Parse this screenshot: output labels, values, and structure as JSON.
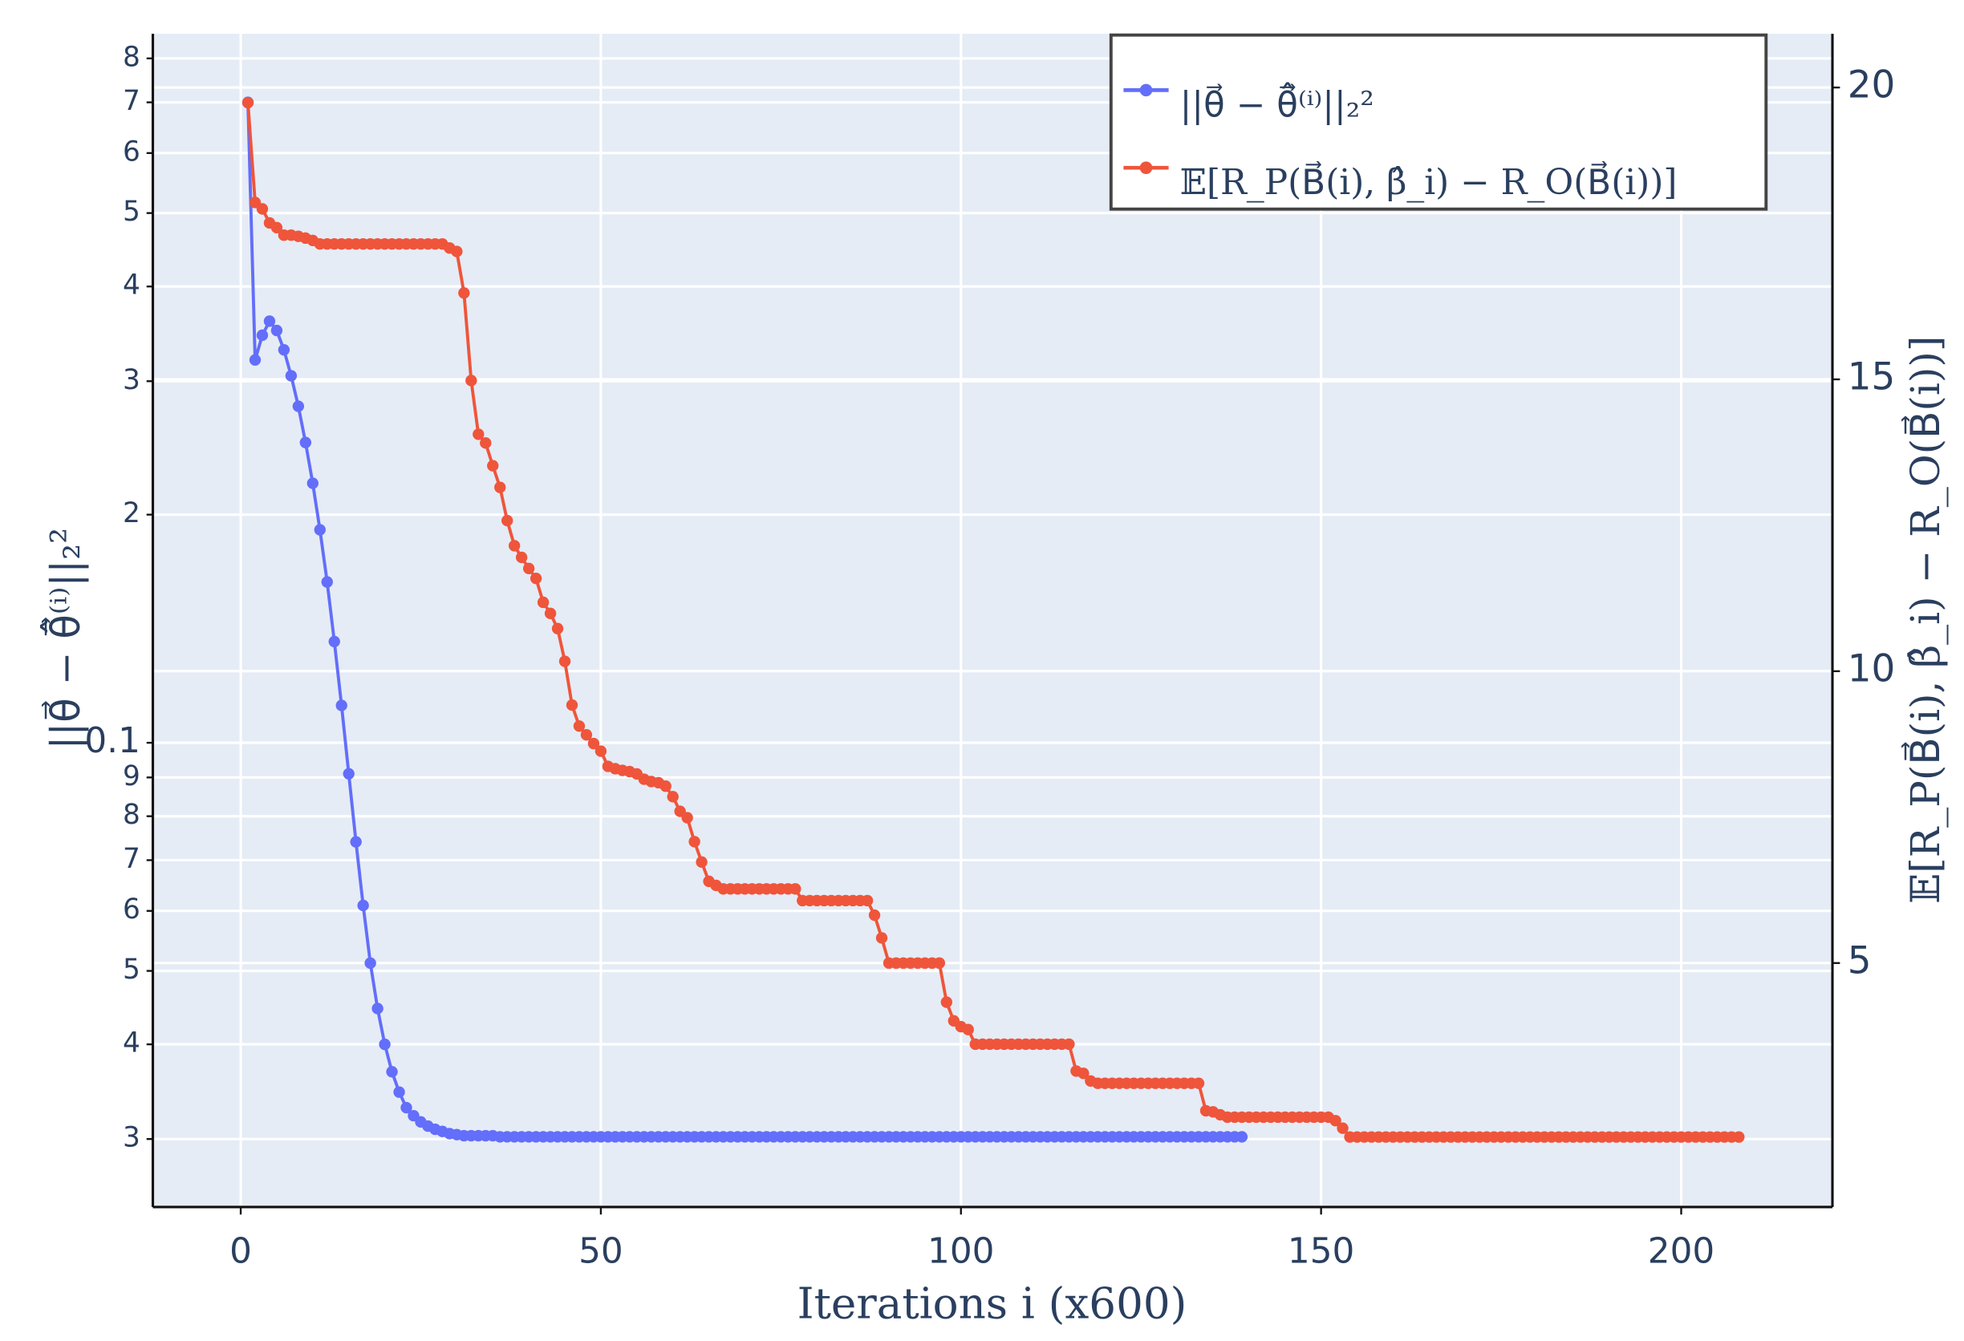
{
  "chart_data": {
    "type": "line",
    "x_label": "Iterations i (x600)",
    "y_label": "||θ⃗ − θ̂⃗⁽ⁱ⁾||₂²",
    "y2_label": "𝔼[R_P(B⃗(i), β̂_i) − R_O(B⃗(i))]",
    "xlim": [
      -12.2,
      221.0
    ],
    "xticks": [
      0,
      50,
      100,
      150,
      200
    ],
    "ylim": [
      0.0244,
      0.862
    ],
    "log_y": true,
    "yticks": [
      {
        "value": 0.03,
        "label": "3"
      },
      {
        "value": 0.04,
        "label": "4"
      },
      {
        "value": 0.05,
        "label": "5"
      },
      {
        "value": 0.06,
        "label": "6"
      },
      {
        "value": 0.07,
        "label": "7"
      },
      {
        "value": 0.08,
        "label": "8"
      },
      {
        "value": 0.09,
        "label": "9"
      },
      0.1,
      {
        "value": 0.2,
        "label": "2"
      },
      {
        "value": 0.3,
        "label": "3"
      },
      {
        "value": 0.4,
        "label": "4"
      },
      {
        "value": 0.5,
        "label": "5"
      },
      {
        "value": 0.6,
        "label": "6"
      },
      {
        "value": 0.7,
        "label": "7"
      },
      {
        "value": 0.8,
        "label": "8"
      }
    ],
    "y2lim": [
      0.82,
      20.92
    ],
    "y2ticks": [
      5,
      10,
      15,
      20
    ],
    "grid": true,
    "legend": "top-right",
    "series": [
      {
        "name": "||θ⃗ − θ̂⃗⁽ⁱ⁾||₂²",
        "color": "#636efa",
        "axis": "y",
        "x": [
          1,
          2,
          3,
          4,
          5,
          6,
          7,
          8,
          9,
          10,
          11,
          12,
          13,
          14,
          15,
          16,
          17,
          18,
          19,
          20,
          21,
          22,
          23,
          24,
          25,
          26,
          27,
          28,
          29,
          30,
          31,
          32,
          33,
          34,
          35,
          36,
          37,
          38,
          39,
          40,
          41,
          42,
          43,
          44,
          45,
          46,
          47,
          48,
          49,
          50,
          51,
          52,
          53,
          54,
          55,
          56,
          57,
          58,
          59,
          60,
          61,
          62,
          63,
          64,
          65,
          66,
          67,
          68,
          69,
          70,
          71,
          72,
          73,
          74,
          75,
          76,
          77,
          78,
          79,
          80,
          81,
          82,
          83,
          84,
          85,
          86,
          87,
          88,
          89,
          90,
          91,
          92,
          93,
          94,
          95,
          96,
          97,
          98,
          99,
          100,
          101,
          102,
          103,
          104,
          105,
          106,
          107,
          108,
          109,
          110,
          111,
          112,
          113,
          114,
          115,
          116,
          117,
          118,
          119,
          120,
          121,
          122,
          123,
          124,
          125,
          126,
          127,
          128,
          129,
          130,
          131,
          132,
          133,
          134,
          135,
          136,
          137,
          138,
          139
        ],
        "values": [
          0.7,
          0.32,
          0.345,
          0.36,
          0.35,
          0.33,
          0.305,
          0.278,
          0.249,
          0.22,
          0.191,
          0.163,
          0.136,
          0.112,
          0.091,
          0.074,
          0.061,
          0.0512,
          0.0446,
          0.04,
          0.0368,
          0.0346,
          0.033,
          0.0322,
          0.0316,
          0.0312,
          0.0309,
          0.0307,
          0.0305,
          0.0304,
          0.0303,
          0.0303,
          0.0303,
          0.0303,
          0.0303,
          0.0302,
          0.0302,
          0.0302,
          0.0302,
          0.0302,
          0.0302,
          0.0302,
          0.0302,
          0.0302,
          0.0302,
          0.0302,
          0.0302,
          0.0302,
          0.0302,
          0.0302,
          0.0302,
          0.0302,
          0.0302,
          0.0302,
          0.0302,
          0.0302,
          0.0302,
          0.0302,
          0.0302,
          0.0302,
          0.0302,
          0.0302,
          0.0302,
          0.0302,
          0.0302,
          0.0302,
          0.0302,
          0.0302,
          0.0302,
          0.0302,
          0.0302,
          0.0302,
          0.0302,
          0.0302,
          0.0302,
          0.0302,
          0.0302,
          0.0302,
          0.0302,
          0.0302,
          0.0302,
          0.0302,
          0.0302,
          0.0302,
          0.0302,
          0.0302,
          0.0302,
          0.0302,
          0.0302,
          0.0302,
          0.0302,
          0.0302,
          0.0302,
          0.0302,
          0.0302,
          0.0302,
          0.0302,
          0.0302,
          0.0302,
          0.0302,
          0.0302,
          0.0302,
          0.0302,
          0.0302,
          0.0302,
          0.0302,
          0.0302,
          0.0302,
          0.0302,
          0.0302,
          0.0302,
          0.0302,
          0.0302,
          0.0302,
          0.0302,
          0.0302,
          0.0302,
          0.0302,
          0.0302,
          0.0302,
          0.0302,
          0.0302,
          0.0302,
          0.0302,
          0.0302,
          0.0302,
          0.0302,
          0.0302,
          0.0302,
          0.0302,
          0.0302,
          0.0302,
          0.0302,
          0.0302,
          0.0302,
          0.0302,
          0.0302,
          0.0302,
          0.0302
        ]
      },
      {
        "name": "𝔼[R_P(B⃗(i), β̂_i) − R_O(B⃗(i))]",
        "color": "#ef553b",
        "axis": "y2",
        "x": [
          1,
          2,
          3,
          4,
          5,
          6,
          7,
          8,
          9,
          10,
          11,
          12,
          13,
          14,
          15,
          16,
          17,
          18,
          19,
          20,
          21,
          22,
          23,
          24,
          25,
          26,
          27,
          28,
          29,
          30,
          31,
          32,
          33,
          34,
          35,
          36,
          37,
          38,
          39,
          40,
          41,
          42,
          43,
          44,
          45,
          46,
          47,
          48,
          49,
          50,
          51,
          52,
          53,
          54,
          55,
          56,
          57,
          58,
          59,
          60,
          61,
          62,
          63,
          64,
          65,
          66,
          67,
          68,
          69,
          70,
          71,
          72,
          73,
          74,
          75,
          76,
          77,
          78,
          79,
          80,
          81,
          82,
          83,
          84,
          85,
          86,
          87,
          88,
          89,
          90,
          91,
          92,
          93,
          94,
          95,
          96,
          97,
          98,
          99,
          100,
          101,
          102,
          103,
          104,
          105,
          106,
          107,
          108,
          109,
          110,
          111,
          112,
          113,
          114,
          115,
          116,
          117,
          118,
          119,
          120,
          121,
          122,
          123,
          124,
          125,
          126,
          127,
          128,
          129,
          130,
          131,
          132,
          133,
          134,
          135,
          136,
          137,
          138,
          139,
          140,
          141,
          142,
          143,
          144,
          145,
          146,
          147,
          148,
          149,
          150,
          151,
          152,
          153,
          154,
          155,
          156,
          157,
          158,
          159,
          160,
          161,
          162,
          163,
          164,
          165,
          166,
          167,
          168,
          169,
          170,
          171,
          172,
          173,
          174,
          175,
          176,
          177,
          178,
          179,
          180,
          181,
          182,
          183,
          184,
          185,
          186,
          187,
          188,
          189,
          190,
          191,
          192,
          193,
          194,
          195,
          196,
          197,
          198,
          199,
          200,
          201,
          202,
          203,
          204,
          205,
          206,
          207,
          208
        ],
        "values": [
          19.74,
          18.03,
          17.92,
          17.68,
          17.6,
          17.47,
          17.47,
          17.45,
          17.42,
          17.38,
          17.32,
          17.32,
          17.32,
          17.32,
          17.32,
          17.32,
          17.32,
          17.32,
          17.32,
          17.32,
          17.32,
          17.32,
          17.32,
          17.32,
          17.32,
          17.32,
          17.32,
          17.32,
          17.25,
          17.19,
          16.48,
          14.98,
          14.06,
          13.91,
          13.52,
          13.15,
          12.58,
          12.15,
          11.95,
          11.76,
          11.59,
          11.18,
          10.99,
          10.73,
          10.17,
          9.42,
          9.06,
          8.91,
          8.76,
          8.63,
          8.37,
          8.33,
          8.3,
          8.28,
          8.24,
          8.15,
          8.11,
          8.09,
          8.03,
          7.85,
          7.6,
          7.49,
          7.08,
          6.73,
          6.4,
          6.33,
          6.27,
          6.27,
          6.27,
          6.27,
          6.27,
          6.27,
          6.27,
          6.27,
          6.27,
          6.27,
          6.27,
          6.07,
          6.07,
          6.07,
          6.07,
          6.07,
          6.07,
          6.07,
          6.07,
          6.07,
          6.07,
          5.82,
          5.43,
          5.0,
          5.0,
          5.0,
          5.0,
          5.0,
          5.0,
          5.0,
          5.0,
          4.33,
          4.01,
          3.91,
          3.86,
          3.61,
          3.61,
          3.61,
          3.61,
          3.61,
          3.61,
          3.61,
          3.61,
          3.61,
          3.61,
          3.61,
          3.61,
          3.61,
          3.61,
          3.15,
          3.11,
          2.98,
          2.94,
          2.94,
          2.94,
          2.94,
          2.94,
          2.94,
          2.94,
          2.94,
          2.94,
          2.94,
          2.94,
          2.94,
          2.94,
          2.94,
          2.94,
          2.47,
          2.45,
          2.4,
          2.36,
          2.36,
          2.36,
          2.36,
          2.36,
          2.36,
          2.36,
          2.36,
          2.36,
          2.36,
          2.36,
          2.36,
          2.36,
          2.36,
          2.36,
          2.3,
          2.17,
          2.02,
          2.02,
          2.02,
          2.02,
          2.02,
          2.02,
          2.02,
          2.02,
          2.02,
          2.02,
          2.02,
          2.02,
          2.02,
          2.02,
          2.02,
          2.02,
          2.02,
          2.02,
          2.02,
          2.02,
          2.02,
          2.02,
          2.02,
          2.02,
          2.02,
          2.02,
          2.02,
          2.02,
          2.02,
          2.02,
          2.02,
          2.02,
          2.02,
          2.02,
          2.02,
          2.02,
          2.02,
          2.02,
          2.02,
          2.02,
          2.02,
          2.02,
          2.02,
          2.02,
          2.02,
          2.02,
          2.02,
          2.02,
          2.02,
          2.02,
          2.02,
          2.02,
          2.02,
          2.02,
          2.02
        ]
      }
    ]
  }
}
